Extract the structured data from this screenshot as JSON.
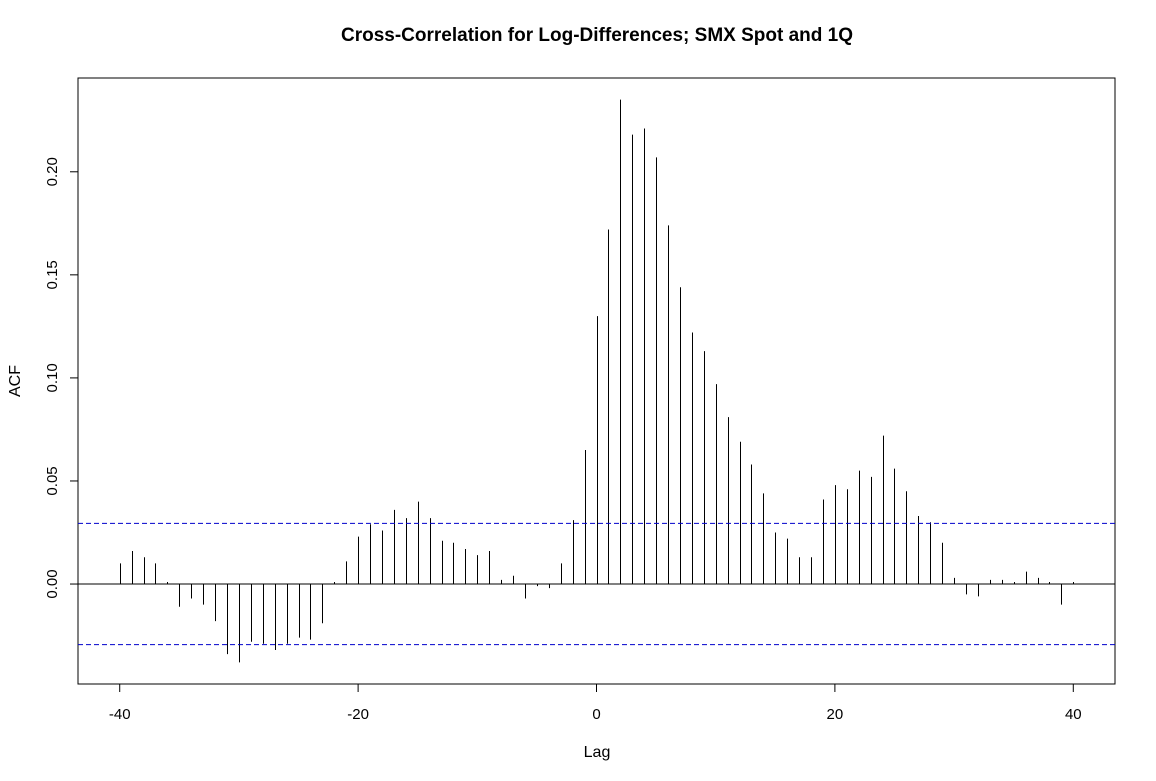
{
  "chart_data": {
    "type": "bar",
    "title": "Cross-Correlation for Log-Differences;  SMX Spot and 1Q",
    "xlabel": "Lag",
    "ylabel": "ACF",
    "xlim": [
      -43.5,
      43.5
    ],
    "ylim": [
      -0.0485,
      0.2455
    ],
    "x_ticks": [
      -40,
      -20,
      0,
      20,
      40
    ],
    "y_ticks": [
      0.0,
      0.05,
      0.1,
      0.15,
      0.2
    ],
    "y_tick_labels": [
      "0.00",
      "0.05",
      "0.10",
      "0.15",
      "0.20"
    ],
    "x_tick_labels": [
      "-40",
      "-20",
      "0",
      "20",
      "40"
    ],
    "confidence_bound": 0.0294,
    "grid": false,
    "lags": [
      -40,
      -39,
      -38,
      -37,
      -36,
      -35,
      -34,
      -33,
      -32,
      -31,
      -30,
      -29,
      -28,
      -27,
      -26,
      -25,
      -24,
      -23,
      -22,
      -21,
      -20,
      -19,
      -18,
      -17,
      -16,
      -15,
      -14,
      -13,
      -12,
      -11,
      -10,
      -9,
      -8,
      -7,
      -6,
      -5,
      -4,
      -3,
      -2,
      -1,
      0,
      1,
      2,
      3,
      4,
      5,
      6,
      7,
      8,
      9,
      10,
      11,
      12,
      13,
      14,
      15,
      16,
      17,
      18,
      19,
      20,
      21,
      22,
      23,
      24,
      25,
      26,
      27,
      28,
      29,
      30,
      31,
      32,
      33,
      34,
      35,
      36,
      37,
      38,
      39,
      40
    ],
    "values": [
      0.01,
      0.016,
      0.013,
      0.01,
      0.001,
      -0.011,
      -0.007,
      -0.01,
      -0.018,
      -0.034,
      -0.038,
      -0.028,
      -0.029,
      -0.032,
      -0.029,
      -0.026,
      -0.027,
      -0.019,
      0.001,
      0.011,
      0.023,
      0.029,
      0.026,
      0.036,
      0.032,
      0.04,
      0.032,
      0.021,
      0.02,
      0.017,
      0.014,
      0.016,
      0.002,
      0.004,
      -0.007,
      -0.001,
      -0.002,
      0.01,
      0.031,
      0.065,
      0.13,
      0.172,
      0.235,
      0.218,
      0.221,
      0.207,
      0.174,
      0.144,
      0.122,
      0.113,
      0.097,
      0.081,
      0.069,
      0.058,
      0.044,
      0.025,
      0.022,
      0.013,
      0.013,
      0.041,
      0.048,
      0.046,
      0.055,
      0.052,
      0.072,
      0.056,
      0.045,
      0.033,
      0.03,
      0.02,
      0.003,
      -0.005,
      -0.006,
      0.002,
      0.002,
      0.001,
      0.006,
      0.003,
      0.001,
      -0.01,
      0.001
    ],
    "colors": {
      "spikes": "#000000",
      "bound": "#0000cc",
      "frame": "#000000"
    }
  }
}
